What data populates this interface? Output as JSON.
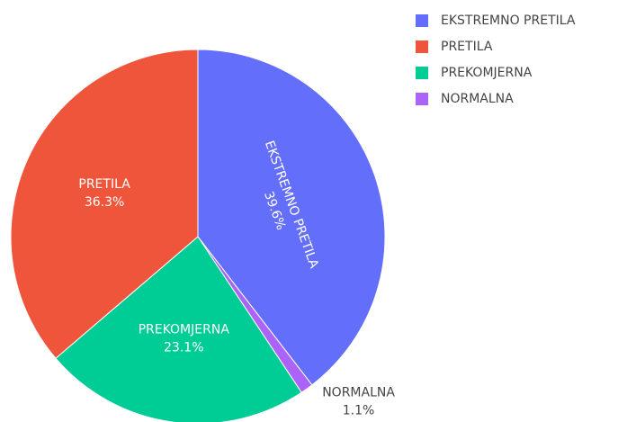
{
  "chart_data": {
    "type": "pie",
    "categories": [
      "EKSTREMNO PRETILA",
      "NORMALNA",
      "PREKOMJERNA",
      "PRETILA"
    ],
    "values": [
      39.6,
      1.1,
      23.1,
      36.3
    ],
    "value_labels": [
      "39.6%",
      "1.1%",
      "23.1%",
      "36.3%"
    ],
    "colors": [
      "#636efa",
      "#ab63fa",
      "#00cc96",
      "#ef553b"
    ],
    "direction": "clockwise",
    "legend": "top-right"
  }
}
